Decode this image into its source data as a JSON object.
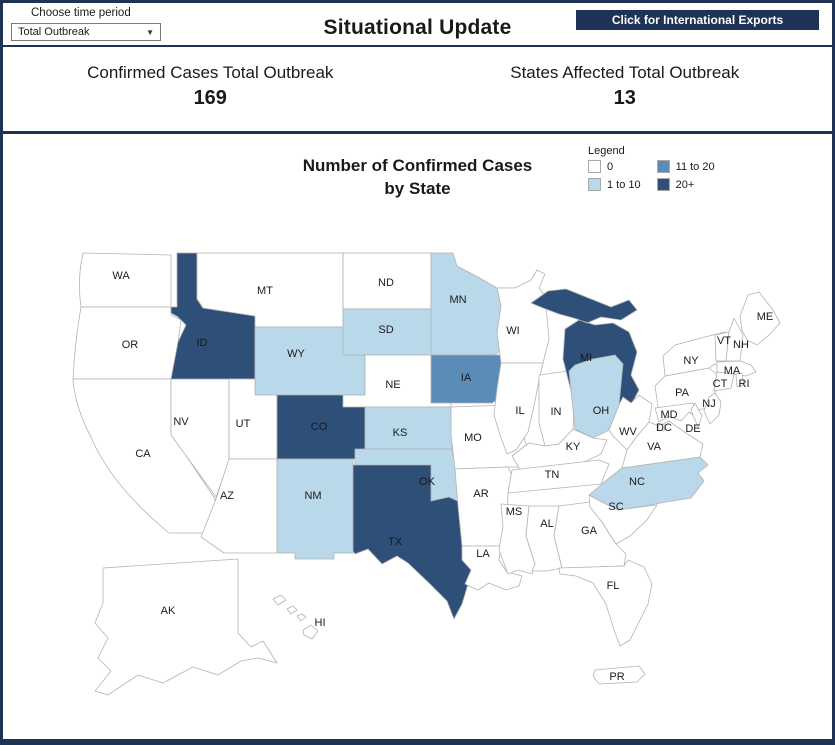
{
  "header": {
    "time_period_label": "Choose time period",
    "time_period_value": "Total Outbreak",
    "title": "Situational Update",
    "export_button_label": "Click for International Exports"
  },
  "stats": [
    {
      "label": "Confirmed Cases Total Outbreak",
      "value": "169"
    },
    {
      "label": "States Affected Total Outbreak",
      "value": "13"
    }
  ],
  "map": {
    "title_line1": "Number of Confirmed Cases",
    "title_line2": "by State",
    "legend": {
      "title": "Legend",
      "items": [
        {
          "label": "0",
          "color": "#ffffff"
        },
        {
          "label": "1 to 10",
          "color": "#b9d8ea"
        },
        {
          "label": "11 to 20",
          "color": "#5b8cb8"
        },
        {
          "label": "20+",
          "color": "#2d4f78"
        }
      ]
    },
    "states": [
      {
        "abbr": "WA",
        "category": "0"
      },
      {
        "abbr": "OR",
        "category": "0"
      },
      {
        "abbr": "CA",
        "category": "0"
      },
      {
        "abbr": "NV",
        "category": "0"
      },
      {
        "abbr": "ID",
        "category": "20+"
      },
      {
        "abbr": "MT",
        "category": "0"
      },
      {
        "abbr": "WY",
        "category": "1 to 10"
      },
      {
        "abbr": "UT",
        "category": "0"
      },
      {
        "abbr": "AZ",
        "category": "0"
      },
      {
        "abbr": "CO",
        "category": "20+"
      },
      {
        "abbr": "NM",
        "category": "1 to 10"
      },
      {
        "abbr": "ND",
        "category": "0"
      },
      {
        "abbr": "SD",
        "category": "1 to 10"
      },
      {
        "abbr": "NE",
        "category": "0"
      },
      {
        "abbr": "KS",
        "category": "1 to 10"
      },
      {
        "abbr": "OK",
        "category": "1 to 10"
      },
      {
        "abbr": "TX",
        "category": "20+"
      },
      {
        "abbr": "MN",
        "category": "1 to 10"
      },
      {
        "abbr": "IA",
        "category": "11 to 20"
      },
      {
        "abbr": "MO",
        "category": "0"
      },
      {
        "abbr": "AR",
        "category": "0"
      },
      {
        "abbr": "LA",
        "category": "0"
      },
      {
        "abbr": "WI",
        "category": "0"
      },
      {
        "abbr": "IL",
        "category": "0"
      },
      {
        "abbr": "IN",
        "category": "0"
      },
      {
        "abbr": "MI",
        "category": "20+"
      },
      {
        "abbr": "OH",
        "category": "1 to 10"
      },
      {
        "abbr": "KY",
        "category": "0"
      },
      {
        "abbr": "TN",
        "category": "0"
      },
      {
        "abbr": "MS",
        "category": "0"
      },
      {
        "abbr": "AL",
        "category": "0"
      },
      {
        "abbr": "GA",
        "category": "0"
      },
      {
        "abbr": "FL",
        "category": "0"
      },
      {
        "abbr": "SC",
        "category": "0"
      },
      {
        "abbr": "NC",
        "category": "1 to 10"
      },
      {
        "abbr": "VA",
        "category": "0"
      },
      {
        "abbr": "WV",
        "category": "0"
      },
      {
        "abbr": "PA",
        "category": "0"
      },
      {
        "abbr": "NY",
        "category": "0"
      },
      {
        "abbr": "NJ",
        "category": "0"
      },
      {
        "abbr": "MD",
        "category": "0"
      },
      {
        "abbr": "DE",
        "category": "0"
      },
      {
        "abbr": "DC",
        "category": "0"
      },
      {
        "abbr": "VT",
        "category": "0"
      },
      {
        "abbr": "NH",
        "category": "0"
      },
      {
        "abbr": "ME",
        "category": "0"
      },
      {
        "abbr": "MA",
        "category": "0"
      },
      {
        "abbr": "CT",
        "category": "0"
      },
      {
        "abbr": "RI",
        "category": "0"
      },
      {
        "abbr": "AK",
        "category": "0"
      },
      {
        "abbr": "HI",
        "category": "0"
      },
      {
        "abbr": "PR",
        "category": "0"
      }
    ]
  }
}
